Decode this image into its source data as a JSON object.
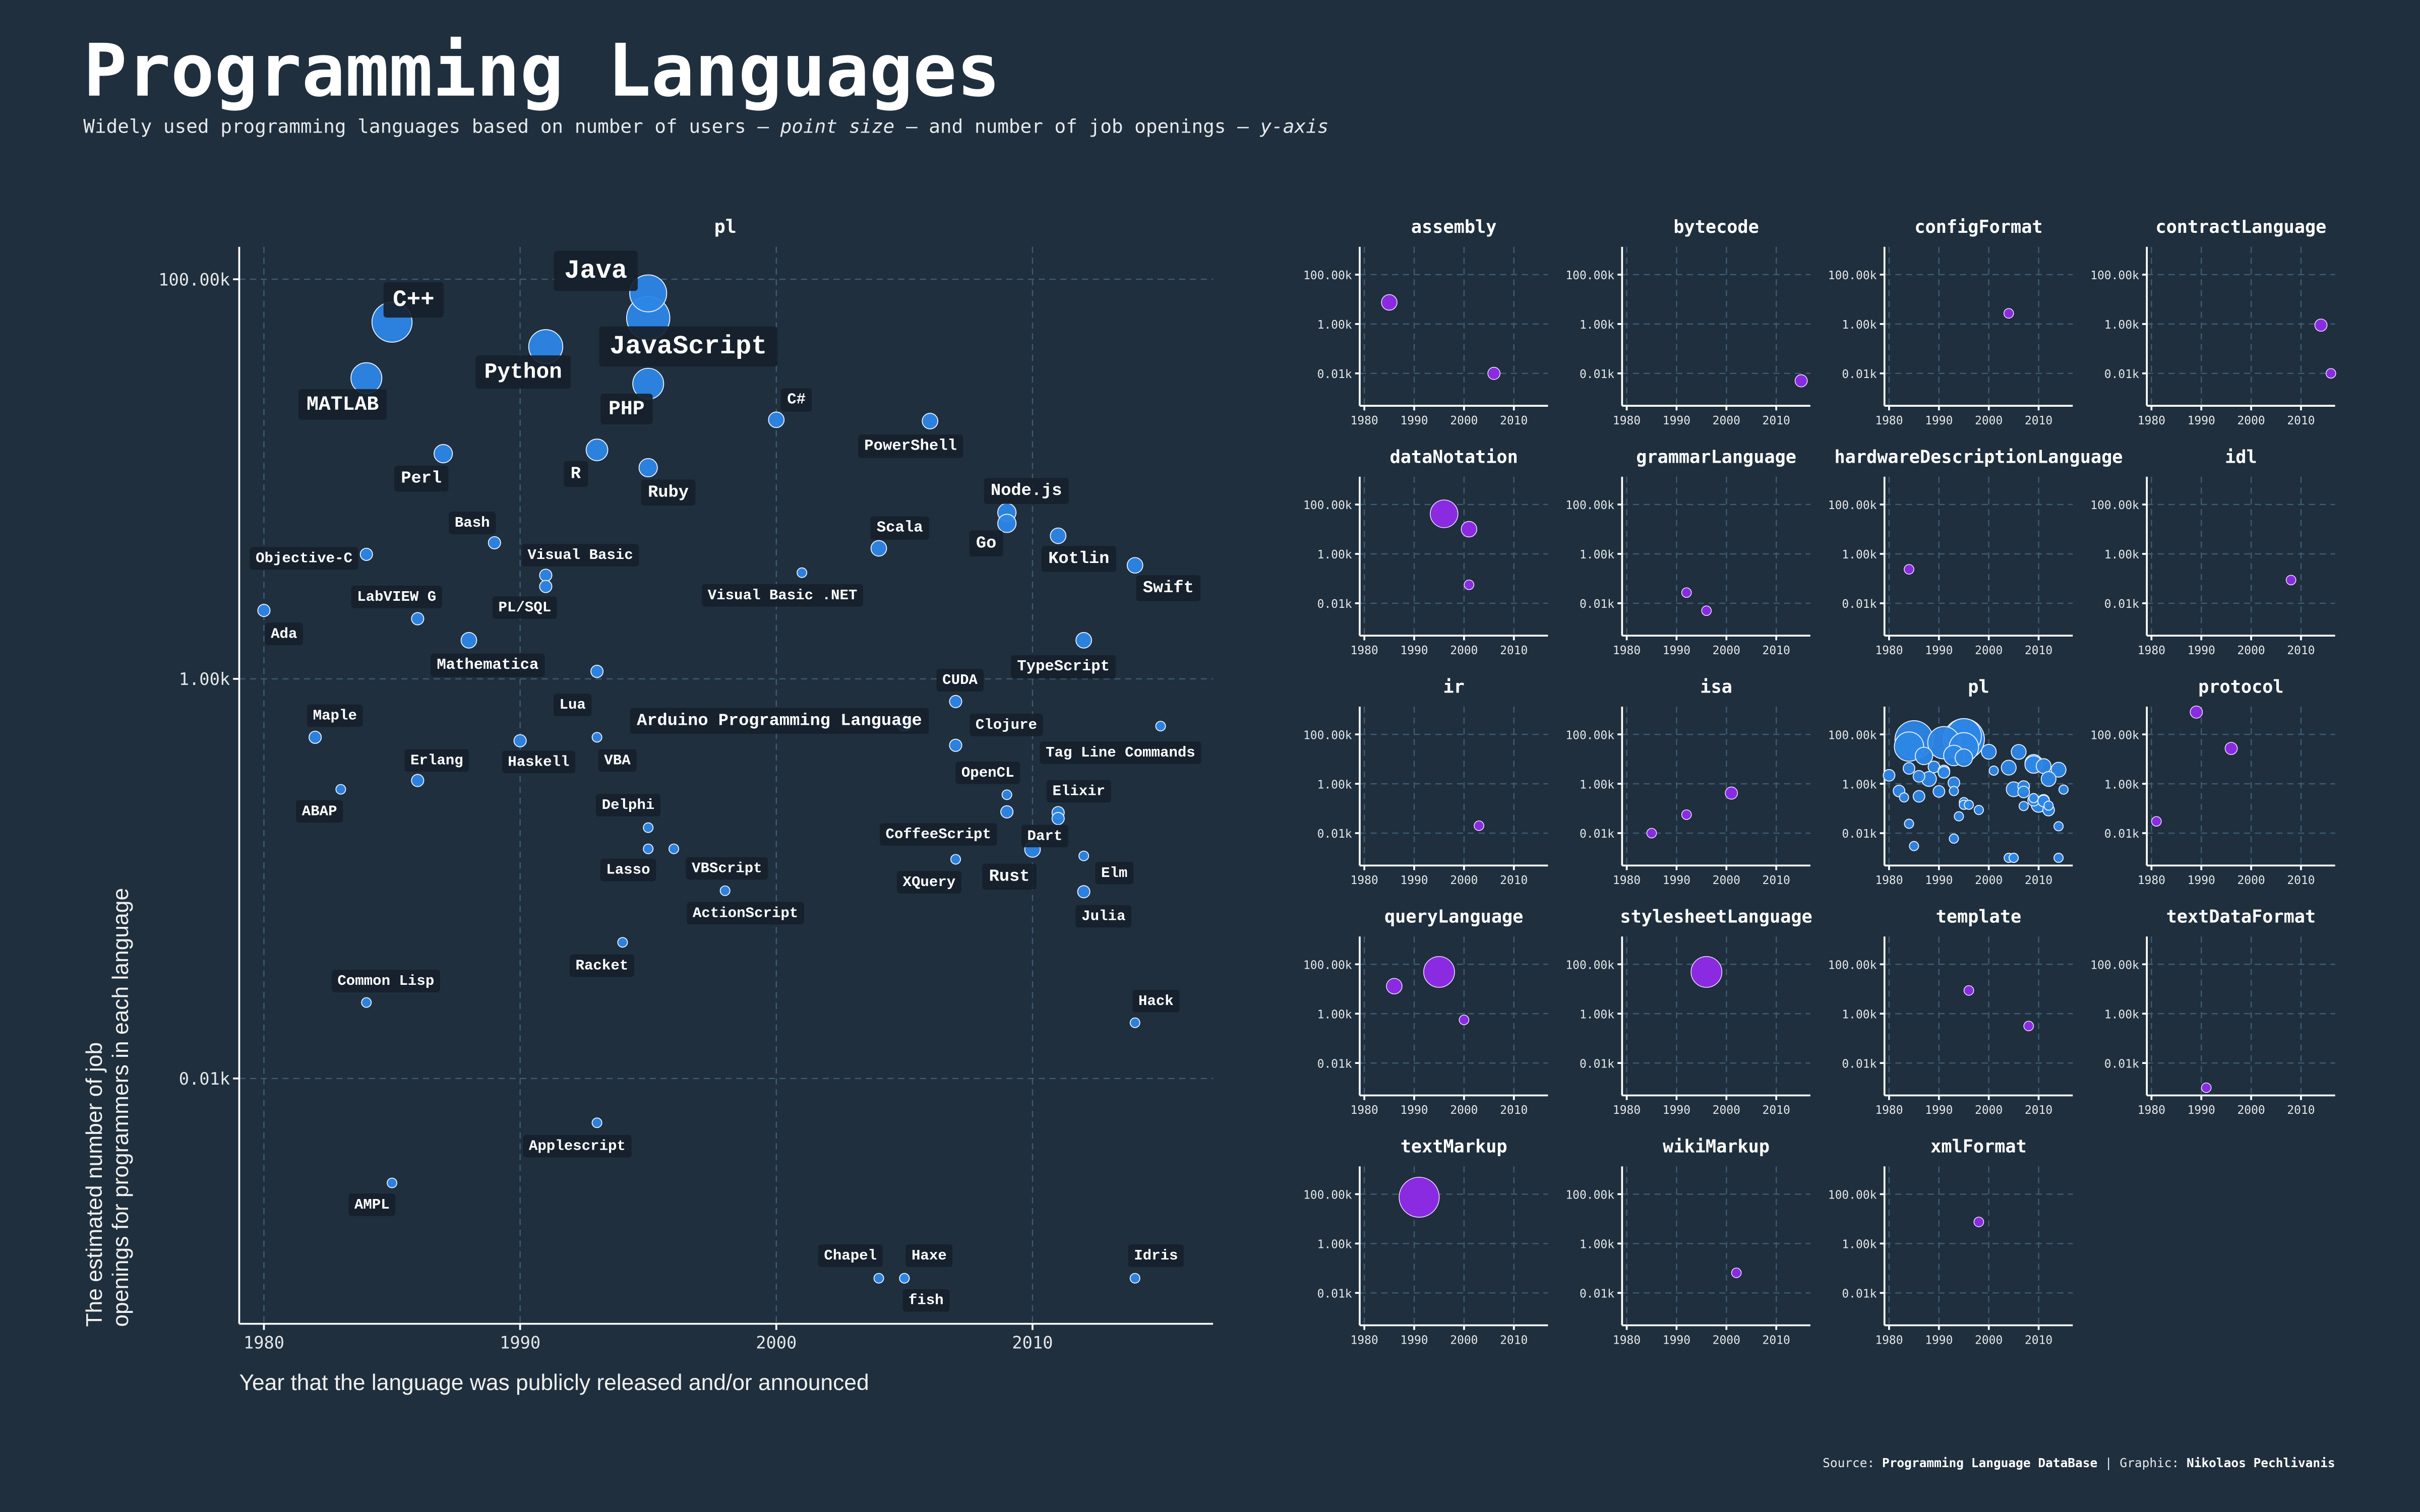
{
  "header": {
    "title": "Programming Languages",
    "subtitle_parts": [
      "Widely used programming languages based on number of users – ",
      "point size",
      " – and number of job openings – ",
      "y-axis"
    ]
  },
  "footer": {
    "source_label": "Source: ",
    "source": "Programming Language DataBase",
    "separator": " | ",
    "graphic_label": "Graphic: ",
    "graphic": "Nikolaos Pechlivanis"
  },
  "colors": {
    "background": "#1f2f3d",
    "pl": "#2c86e6",
    "other": "#8a2be2",
    "grid": "#3e5b73"
  },
  "chart_data": {
    "type": "scatter",
    "main": {
      "title": "pl",
      "xlabel": "Year that the language was publicly released and/or announced",
      "ylabel_lines": [
        "The estimated number of job",
        "openings for programmers in each language"
      ],
      "x_ticks": [
        1980,
        1990,
        2000,
        2010
      ],
      "x_tick_labels": [
        "1980",
        "1990",
        "2000",
        "2010"
      ],
      "y_scale": "log",
      "y_ticks": [
        100000,
        1000,
        10
      ],
      "y_tick_labels": [
        "100.00k",
        "1.00k",
        "0.01k"
      ],
      "xlim": [
        1979,
        2017
      ],
      "ylim": [
        0.5,
        250000
      ],
      "size_encoding": "number of users (relative)",
      "points": [
        {
          "name": "Java",
          "year": 1995,
          "jobs": 85000,
          "users": 73
        },
        {
          "name": "JavaScript",
          "year": 1995,
          "jobs": 64000,
          "users": 100
        },
        {
          "name": "C++",
          "year": 1985,
          "jobs": 61000,
          "users": 86
        },
        {
          "name": "Python",
          "year": 1991,
          "jobs": 46000,
          "users": 62
        },
        {
          "name": "MATLAB",
          "year": 1984,
          "jobs": 32000,
          "users": 51
        },
        {
          "name": "PHP",
          "year": 1995,
          "jobs": 30000,
          "users": 51
        },
        {
          "name": "C#",
          "year": 2000,
          "jobs": 19800,
          "users": 13
        },
        {
          "name": "PowerShell",
          "year": 2006,
          "jobs": 19500,
          "users": 13
        },
        {
          "name": "Perl",
          "year": 1987,
          "jobs": 13400,
          "users": 18
        },
        {
          "name": "R",
          "year": 1993,
          "jobs": 14000,
          "users": 25
        },
        {
          "name": "Ruby",
          "year": 1995,
          "jobs": 11400,
          "users": 18
        },
        {
          "name": "Node.js",
          "year": 2009,
          "jobs": 6800,
          "users": 18
        },
        {
          "name": "Go",
          "year": 2009,
          "jobs": 6000,
          "users": 18
        },
        {
          "name": "Kotlin",
          "year": 2011,
          "jobs": 5200,
          "users": 13
        },
        {
          "name": "Scala",
          "year": 2004,
          "jobs": 4500,
          "users": 13
        },
        {
          "name": "Bash",
          "year": 1989,
          "jobs": 4800,
          "users": 8
        },
        {
          "name": "Objective-C",
          "year": 1984,
          "jobs": 4200,
          "users": 8
        },
        {
          "name": "Swift",
          "year": 2014,
          "jobs": 3700,
          "users": 13
        },
        {
          "name": "Visual Basic",
          "year": 1991,
          "jobs": 3300,
          "users": 8
        },
        {
          "name": "PL/SQL",
          "year": 1991,
          "jobs": 2900,
          "users": 8
        },
        {
          "name": "Visual Basic .NET",
          "year": 2001,
          "jobs": 3400,
          "users": 5
        },
        {
          "name": "Ada",
          "year": 1980,
          "jobs": 2200,
          "users": 8
        },
        {
          "name": "LabVIEW G",
          "year": 1986,
          "jobs": 2000,
          "users": 8
        },
        {
          "name": "Mathematica",
          "year": 1988,
          "jobs": 1560,
          "users": 13
        },
        {
          "name": "TypeScript",
          "year": 2012,
          "jobs": 1560,
          "users": 13
        },
        {
          "name": "Lua",
          "year": 1993,
          "jobs": 1090,
          "users": 8
        },
        {
          "name": "CUDA",
          "year": 2007,
          "jobs": 770,
          "users": 8
        },
        {
          "name": "Arduino Programming Language",
          "year": 2005,
          "jobs": 600,
          "users": 13
        },
        {
          "name": "Tag Line Commands",
          "year": 2015,
          "jobs": 580,
          "users": 5
        },
        {
          "name": "Maple",
          "year": 1982,
          "jobs": 510,
          "users": 8
        },
        {
          "name": "Haskell",
          "year": 1990,
          "jobs": 490,
          "users": 8
        },
        {
          "name": "VBA",
          "year": 1993,
          "jobs": 510,
          "users": 5
        },
        {
          "name": "Clojure",
          "year": 2007,
          "jobs": 465,
          "users": 8
        },
        {
          "name": "Erlang",
          "year": 1986,
          "jobs": 310,
          "users": 8
        },
        {
          "name": "ABAP",
          "year": 1983,
          "jobs": 280,
          "users": 5
        },
        {
          "name": "OpenCL",
          "year": 2009,
          "jobs": 263,
          "users": 5
        },
        {
          "name": "CoffeeScript",
          "year": 2009,
          "jobs": 216,
          "users": 8
        },
        {
          "name": "Elixir",
          "year": 2011,
          "jobs": 214,
          "users": 8
        },
        {
          "name": "Dart",
          "year": 2011,
          "jobs": 200,
          "users": 8
        },
        {
          "name": "Delphi",
          "year": 1995,
          "jobs": 180,
          "users": 5
        },
        {
          "name": "Lasso",
          "year": 1995,
          "jobs": 141,
          "users": 5
        },
        {
          "name": "VBScript",
          "year": 1996,
          "jobs": 141,
          "users": 5
        },
        {
          "name": "Rust",
          "year": 2010,
          "jobs": 140,
          "users": 13
        },
        {
          "name": "XQuery",
          "year": 2007,
          "jobs": 125,
          "users": 5
        },
        {
          "name": "Elm",
          "year": 2012,
          "jobs": 130,
          "users": 5
        },
        {
          "name": "ActionScript",
          "year": 1998,
          "jobs": 87,
          "users": 5
        },
        {
          "name": "Julia",
          "year": 2012,
          "jobs": 86,
          "users": 8
        },
        {
          "name": "Racket",
          "year": 1994,
          "jobs": 48,
          "users": 5
        },
        {
          "name": "Common Lisp",
          "year": 1984,
          "jobs": 24,
          "users": 5
        },
        {
          "name": "Hack",
          "year": 2014,
          "jobs": 19,
          "users": 5
        },
        {
          "name": "Applescript",
          "year": 1993,
          "jobs": 6,
          "users": 5
        },
        {
          "name": "AMPL",
          "year": 1985,
          "jobs": 3,
          "users": 5
        },
        {
          "name": "Chapel",
          "year": 2004,
          "jobs": 1,
          "users": 5
        },
        {
          "name": "Haxe",
          "year": 2005,
          "jobs": 1,
          "users": 5
        },
        {
          "name": "fish",
          "year": 2005,
          "jobs": 1,
          "users": 5
        },
        {
          "name": "Idris",
          "year": 2014,
          "jobs": 1,
          "users": 5
        }
      ]
    },
    "facets": [
      {
        "title": "assembly",
        "points": [
          {
            "year": 1985,
            "jobs": 7500,
            "users": 13
          },
          {
            "year": 2006,
            "jobs": 10,
            "users": 8
          }
        ]
      },
      {
        "title": "bytecode",
        "points": [
          {
            "year": 2015,
            "jobs": 5,
            "users": 8
          }
        ]
      },
      {
        "title": "configFormat",
        "points": [
          {
            "year": 2004,
            "jobs": 2700,
            "users": 5
          }
        ]
      },
      {
        "title": "contractLanguage",
        "points": [
          {
            "year": 2014,
            "jobs": 900,
            "users": 8
          },
          {
            "year": 2016,
            "jobs": 10,
            "users": 5
          }
        ]
      },
      {
        "title": "dataNotation",
        "points": [
          {
            "year": 1996,
            "jobs": 42000,
            "users": 41
          },
          {
            "year": 2001,
            "jobs": 10000,
            "users": 13
          },
          {
            "year": 2001,
            "jobs": 56,
            "users": 5
          }
        ]
      },
      {
        "title": "grammarLanguage",
        "points": [
          {
            "year": 1992,
            "jobs": 27,
            "users": 5
          },
          {
            "year": 1996,
            "jobs": 5,
            "users": 5
          }
        ]
      },
      {
        "title": "hardwareDescriptionLanguage",
        "points": [
          {
            "year": 1984,
            "jobs": 237,
            "users": 5
          }
        ]
      },
      {
        "title": "idl",
        "points": [
          {
            "year": 2008,
            "jobs": 87,
            "users": 5
          }
        ]
      },
      {
        "title": "ir",
        "points": [
          {
            "year": 2003,
            "jobs": 20,
            "users": 5
          }
        ]
      },
      {
        "title": "isa",
        "points": [
          {
            "year": 1985,
            "jobs": 10,
            "users": 5
          },
          {
            "year": 1992,
            "jobs": 56,
            "users": 5
          },
          {
            "year": 2001,
            "jobs": 420,
            "users": 8
          }
        ]
      },
      {
        "title": "pl",
        "uses_main_points": true,
        "points": []
      },
      {
        "title": "protocol",
        "points": [
          {
            "year": 1989,
            "jobs": 800000,
            "users": 8
          },
          {
            "year": 1996,
            "jobs": 27000,
            "users": 8
          },
          {
            "year": 1981,
            "jobs": 30,
            "users": 5
          }
        ]
      },
      {
        "title": "queryLanguage",
        "points": [
          {
            "year": 1986,
            "jobs": 13000,
            "users": 13
          },
          {
            "year": 1995,
            "jobs": 49000,
            "users": 51
          },
          {
            "year": 2000,
            "jobs": 560,
            "users": 5
          }
        ]
      },
      {
        "title": "stylesheetLanguage",
        "points": [
          {
            "year": 1996,
            "jobs": 49000,
            "users": 51
          }
        ]
      },
      {
        "title": "template",
        "points": [
          {
            "year": 1996,
            "jobs": 8700,
            "users": 5
          },
          {
            "year": 2008,
            "jobs": 316,
            "users": 5
          }
        ]
      },
      {
        "title": "textDataFormat",
        "points": [
          {
            "year": 1991,
            "jobs": 1,
            "users": 5
          }
        ]
      },
      {
        "title": "textMarkup",
        "points": [
          {
            "year": 1991,
            "jobs": 75000,
            "users": 86
          }
        ]
      },
      {
        "title": "wikiMarkup",
        "points": [
          {
            "year": 2002,
            "jobs": 65,
            "users": 5
          }
        ]
      },
      {
        "title": "xmlFormat",
        "points": [
          {
            "year": 1998,
            "jobs": 7500,
            "users": 5
          }
        ]
      }
    ]
  }
}
